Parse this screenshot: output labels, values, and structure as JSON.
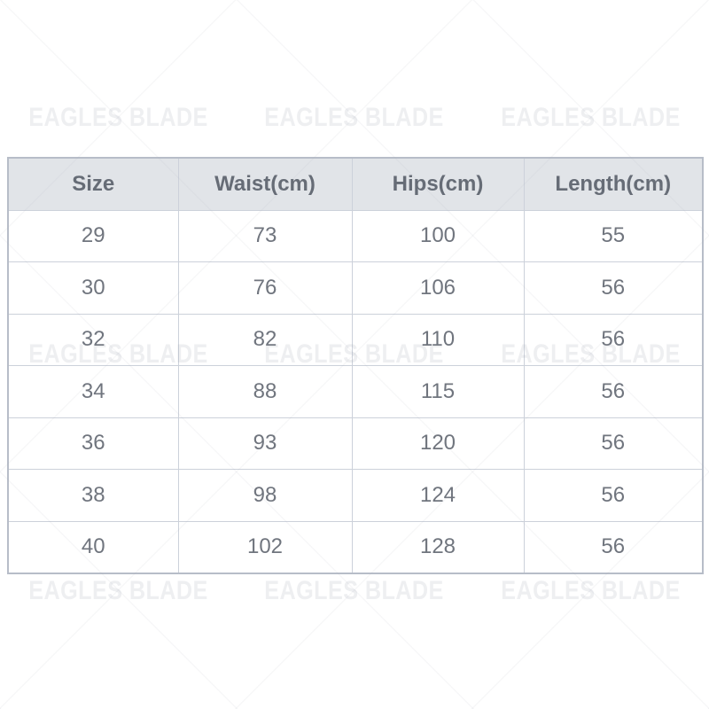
{
  "chart_data": {
    "type": "table",
    "columns": [
      "Size",
      "Waist(cm)",
      "Hips(cm)",
      "Length(cm)"
    ],
    "rows": [
      [
        "29",
        "73",
        "100",
        "55"
      ],
      [
        "30",
        "76",
        "106",
        "56"
      ],
      [
        "32",
        "82",
        "110",
        "56"
      ],
      [
        "34",
        "88",
        "115",
        "56"
      ],
      [
        "36",
        "93",
        "120",
        "56"
      ],
      [
        "38",
        "98",
        "124",
        "56"
      ],
      [
        "40",
        "102",
        "128",
        "56"
      ]
    ]
  },
  "watermark": {
    "text": "EAGLES BLADE",
    "grid": "3x3"
  },
  "colors": {
    "header_bg": "#e1e4e8",
    "header_text": "#666c76",
    "cell_text": "#70757e",
    "border_inner": "#ccd1da",
    "border_outer": "#b7bdc8",
    "watermark_color": "rgba(150,157,170,0.16)",
    "wm_line": "rgba(165,170,182,0.09)"
  }
}
